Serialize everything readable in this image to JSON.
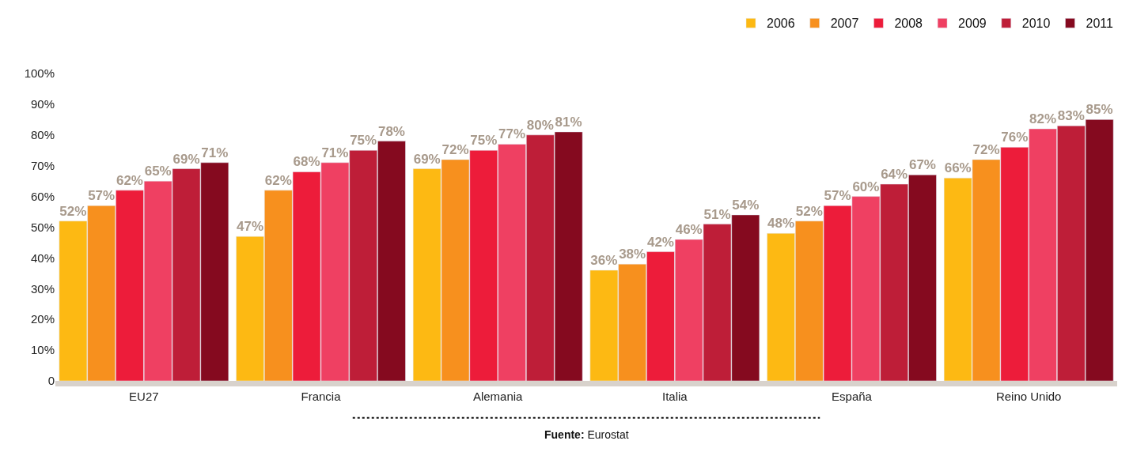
{
  "chart_data": {
    "type": "bar",
    "categories": [
      "EU27",
      "Francia",
      "Alemania",
      "Italia",
      "España",
      "Reino Unido"
    ],
    "series": [
      {
        "name": "2006",
        "color": "#fdb913",
        "values": [
          52,
          47,
          69,
          36,
          48,
          66
        ],
        "value_labels": [
          "52%",
          "47%",
          "69%",
          "36%",
          "48%",
          "66%"
        ]
      },
      {
        "name": "2007",
        "color": "#f7901e",
        "values": [
          57,
          62,
          72,
          38,
          52,
          72
        ],
        "value_labels": [
          "57%",
          "62%",
          "72%",
          "38%",
          "52%",
          "72%"
        ]
      },
      {
        "name": "2008",
        "color": "#ed1c3a",
        "values": [
          62,
          68,
          75,
          42,
          57,
          76
        ],
        "value_labels": [
          "62%",
          "68%",
          "75%",
          "42%",
          "57%",
          "76%"
        ]
      },
      {
        "name": "2009",
        "color": "#ef4062",
        "values": [
          65,
          71,
          77,
          46,
          60,
          82
        ],
        "value_labels": [
          "65%",
          "71%",
          "77%",
          "46%",
          "60%",
          "82%"
        ]
      },
      {
        "name": "2010",
        "color": "#be1e38",
        "values": [
          69,
          75,
          80,
          51,
          64,
          83
        ],
        "value_labels": [
          "69%",
          "75%",
          "80%",
          "51%",
          "64%",
          "83%"
        ]
      },
      {
        "name": "2011",
        "color": "#850a1f",
        "values": [
          71,
          78,
          81,
          54,
          67,
          85
        ],
        "value_labels": [
          "71%",
          "78%",
          "81%",
          "54%",
          "67%",
          "85%"
        ]
      }
    ],
    "ylim": [
      0,
      100
    ],
    "yticks": [
      0,
      {
        "value": 10,
        "label": "10%"
      },
      {
        "value": 20,
        "label": "20%"
      },
      {
        "value": 30,
        "label": "30%"
      },
      {
        "value": 40,
        "label": "40%"
      },
      {
        "value": 50,
        "label": "50%"
      },
      {
        "value": 60,
        "label": "60%"
      },
      {
        "value": 70,
        "label": "70%"
      },
      {
        "value": 80,
        "label": "80%"
      },
      {
        "value": 90,
        "label": "90%"
      },
      {
        "value": 100,
        "label": "100%"
      }
    ],
    "legend": "top right",
    "annotations": [
      "Fuente: Eurostat"
    ]
  }
}
